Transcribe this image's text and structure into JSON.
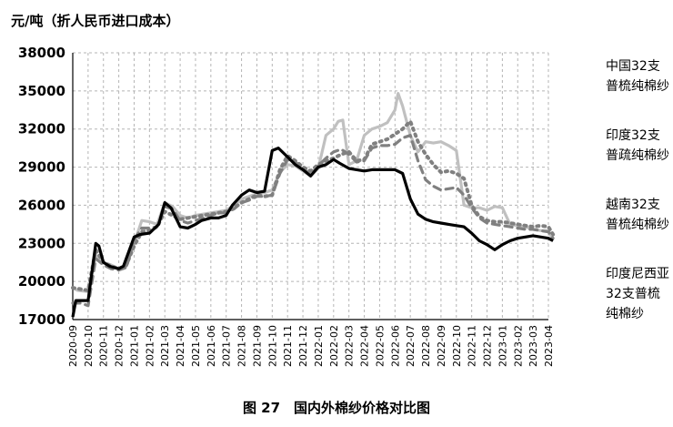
{
  "header": {
    "unit": "元/吨（折人民币进口成本）"
  },
  "caption": "图 27　国内外棉纱价格对比图",
  "chart_data": {
    "type": "line",
    "ylim": [
      17000,
      38000
    ],
    "yticks": [
      17000,
      20000,
      23000,
      26000,
      29000,
      32000,
      35000,
      38000
    ],
    "ytick_labels": [
      "17000",
      "20000",
      "23000",
      "26000",
      "29000",
      "32000",
      "35000",
      "38000"
    ],
    "grid": true,
    "legend_position": "right",
    "categories": [
      "2020-09",
      "2020-10",
      "2020-11",
      "2020-12",
      "2021-01",
      "2021-02",
      "2021-03",
      "2021-04",
      "2021-05",
      "2021-06",
      "2021-07",
      "2021-08",
      "2021-09",
      "2021-10",
      "2021-11",
      "2021-12",
      "2022-01",
      "2022-02",
      "2022-03",
      "2022-04",
      "2022-05",
      "2022-06",
      "2022-07",
      "2022-08",
      "2022-09",
      "2022-10",
      "2022-11",
      "2022-12",
      "2023-01",
      "2023-02",
      "2023-03",
      "2023-04"
    ],
    "series": [
      {
        "name": "中国32支普梳纯棉纱",
        "color": "#000000",
        "dash": "",
        "width": 3.2,
        "x": [
          0,
          0.2,
          1,
          1.5,
          1.7,
          2,
          2.4,
          3,
          3.3,
          4,
          4.4,
          5,
          5.6,
          6,
          6.4,
          7,
          7.5,
          8,
          8.4,
          9,
          9.5,
          10,
          10.4,
          11,
          11.5,
          12,
          12.5,
          13,
          13.4,
          14,
          14.5,
          15,
          15.5,
          16,
          16.5,
          17,
          17.4,
          18,
          18.5,
          19,
          19.5,
          20,
          20.5,
          21,
          21.5,
          22,
          22.5,
          23,
          23.5,
          24,
          24.5,
          25,
          25.5,
          26,
          26.5,
          27,
          27.5,
          28,
          28.5,
          29,
          29.5,
          30,
          30.5,
          31,
          31.3
        ],
        "y": [
          17200,
          18500,
          18500,
          23000,
          22800,
          21500,
          21200,
          21000,
          21200,
          23500,
          23700,
          23800,
          24500,
          26200,
          25800,
          24300,
          24200,
          24500,
          24800,
          25000,
          25000,
          25200,
          26000,
          26800,
          27200,
          27000,
          27100,
          30300,
          30500,
          29800,
          29200,
          28800,
          28300,
          29000,
          29200,
          29600,
          29300,
          28900,
          28800,
          28700,
          28800,
          28800,
          28800,
          28800,
          28500,
          26500,
          25300,
          24900,
          24700,
          24600,
          24500,
          24400,
          24300,
          23800,
          23200,
          22900,
          22500,
          22900,
          23200,
          23400,
          23500,
          23600,
          23500,
          23400,
          23200
        ]
      },
      {
        "name": "印度32支普疏纯棉纱",
        "color": "#c0c0c0",
        "dash": "",
        "width": 3.2,
        "x": [
          0,
          0.3,
          1,
          1.5,
          2,
          2.5,
          3,
          3.5,
          4,
          4.5,
          5,
          5.5,
          6,
          6.5,
          7,
          7.5,
          8,
          8.5,
          9,
          9.5,
          10,
          10.5,
          11,
          11.5,
          12,
          12.5,
          13,
          13.5,
          14,
          14.5,
          15,
          15.5,
          16,
          16.5,
          17,
          17.3,
          17.6,
          18,
          18.5,
          19,
          19.5,
          20,
          20.5,
          21,
          21.2,
          21.5,
          22,
          22.5,
          23,
          23.5,
          24,
          24.5,
          25,
          25.5,
          26,
          26.5,
          27,
          27.5,
          28,
          28.5,
          29,
          29.5,
          30,
          30.5,
          31,
          31.3
        ],
        "y": [
          19500,
          19300,
          19200,
          22000,
          21500,
          21300,
          21000,
          21200,
          23000,
          24800,
          24700,
          24500,
          26200,
          25900,
          25200,
          25000,
          25200,
          25300,
          25400,
          25500,
          25600,
          26000,
          26500,
          26700,
          26900,
          27000,
          27200,
          28600,
          29200,
          29100,
          28700,
          28300,
          28900,
          31500,
          32000,
          32600,
          32700,
          29200,
          29500,
          31500,
          32000,
          32200,
          32500,
          33500,
          34800,
          33800,
          31500,
          30200,
          31000,
          30900,
          31000,
          30700,
          30300,
          26000,
          25800,
          25800,
          25600,
          25900,
          25800,
          24500,
          24400,
          24300,
          24100,
          24000,
          24000,
          23300
        ]
      },
      {
        "name": "越南32支普梳纯棉纱",
        "color": "#808080",
        "dash": "8 6",
        "width": 3.2,
        "x": [
          0,
          0.5,
          1,
          1.5,
          2,
          2.5,
          3,
          3.5,
          4,
          4.5,
          5,
          5.5,
          6,
          6.5,
          7,
          7.5,
          8,
          8.5,
          9,
          9.5,
          10,
          10.5,
          11,
          11.5,
          12,
          12.5,
          13,
          13.5,
          14,
          14.5,
          15,
          15.5,
          16,
          16.5,
          17,
          17.5,
          18,
          18.5,
          19,
          19.5,
          20,
          20.5,
          21,
          21.5,
          22,
          22.5,
          23,
          23.5,
          24,
          24.5,
          25,
          25.5,
          26,
          26.5,
          27,
          27.5,
          28,
          28.5,
          29,
          29.5,
          30,
          30.5,
          31,
          31.3
        ],
        "y": [
          18300,
          18300,
          18100,
          21800,
          21300,
          21000,
          20900,
          21100,
          23300,
          24200,
          24200,
          24300,
          25900,
          25700,
          24800,
          24600,
          24800,
          25000,
          25200,
          25400,
          25400,
          25700,
          26200,
          26400,
          26700,
          26700,
          26800,
          28500,
          29600,
          29400,
          28900,
          28400,
          29100,
          29700,
          30200,
          30400,
          30000,
          29400,
          29500,
          30500,
          30700,
          30700,
          30800,
          31300,
          31500,
          29500,
          28000,
          27500,
          27200,
          27300,
          27400,
          26800,
          25800,
          25000,
          24600,
          24500,
          24400,
          24300,
          24200,
          24100,
          24100,
          24000,
          23900,
          23400
        ]
      },
      {
        "name": "印度尼西亚32支普梳纯棉纱",
        "color": "#808080",
        "dash": "2 5",
        "width": 4,
        "x": [
          0,
          0.5,
          1,
          1.5,
          2,
          2.5,
          3,
          3.5,
          4,
          4.5,
          5,
          5.5,
          6,
          6.5,
          7,
          7.5,
          8,
          8.5,
          9,
          9.5,
          10,
          10.5,
          11,
          11.5,
          12,
          12.5,
          13,
          13.5,
          14,
          14.5,
          15,
          15.5,
          16,
          16.5,
          17,
          17.5,
          18,
          18.5,
          19,
          19.5,
          20,
          20.5,
          21,
          21.5,
          22,
          22.5,
          23,
          23.5,
          24,
          24.5,
          25,
          25.5,
          26,
          26.5,
          27,
          27.5,
          28,
          28.5,
          29,
          29.5,
          30,
          30.5,
          31,
          31.3
        ],
        "y": [
          19500,
          19400,
          19300,
          22500,
          21500,
          21200,
          21000,
          21300,
          22800,
          23900,
          24000,
          24300,
          25500,
          25200,
          24900,
          25000,
          25100,
          25200,
          25300,
          25400,
          25500,
          25800,
          26200,
          26500,
          26800,
          26700,
          26800,
          28800,
          29900,
          29500,
          29000,
          28700,
          29200,
          29500,
          29700,
          30000,
          30200,
          29500,
          29600,
          30800,
          31000,
          31200,
          31600,
          32000,
          32600,
          31000,
          30000,
          29200,
          28600,
          28700,
          28500,
          28100,
          26000,
          25100,
          24800,
          24700,
          24700,
          24600,
          24500,
          24400,
          24300,
          24400,
          24300,
          23700
        ]
      }
    ]
  }
}
